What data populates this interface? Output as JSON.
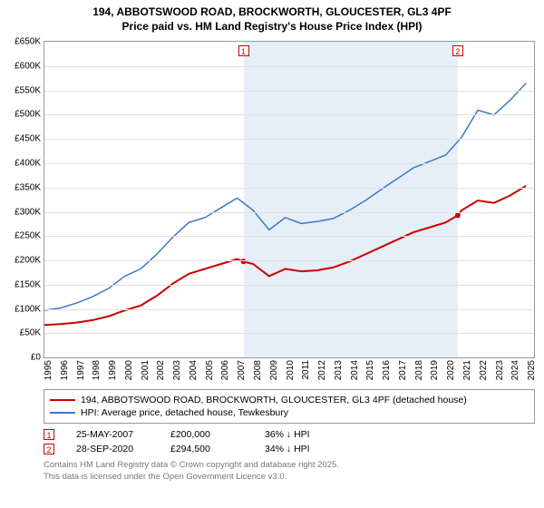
{
  "title_line1": "194, ABBOTSWOOD ROAD, BROCKWORTH, GLOUCESTER, GL3 4PF",
  "title_line2": "Price paid vs. HM Land Registry's House Price Index (HPI)",
  "chart": {
    "type": "line",
    "background_color": "#ffffff",
    "grid_color": "#e0e0e0",
    "xlim": [
      1995,
      2025.5
    ],
    "ylim": [
      0,
      650000
    ],
    "ytick_step": 50000,
    "yticks_labels": [
      "£0",
      "£50K",
      "£100K",
      "£150K",
      "£200K",
      "£250K",
      "£300K",
      "£350K",
      "£400K",
      "£450K",
      "£500K",
      "£550K",
      "£600K",
      "£650K"
    ],
    "xticks": [
      1995,
      1996,
      1997,
      1998,
      1999,
      2000,
      2001,
      2002,
      2003,
      2004,
      2005,
      2006,
      2007,
      2008,
      2009,
      2010,
      2011,
      2012,
      2013,
      2014,
      2015,
      2016,
      2017,
      2018,
      2019,
      2020,
      2021,
      2022,
      2023,
      2024,
      2025
    ],
    "shaded_band": {
      "start": 2007.4,
      "end": 2020.75,
      "color": "#e6eef7"
    },
    "series": [
      {
        "name": "property",
        "color": "#cc0000",
        "line_width": 2,
        "points": [
          [
            1995,
            70000
          ],
          [
            1996,
            72000
          ],
          [
            1997,
            75000
          ],
          [
            1998,
            80000
          ],
          [
            1999,
            88000
          ],
          [
            2000,
            100000
          ],
          [
            2001,
            110000
          ],
          [
            2002,
            130000
          ],
          [
            2003,
            155000
          ],
          [
            2004,
            175000
          ],
          [
            2005,
            185000
          ],
          [
            2006,
            195000
          ],
          [
            2007,
            205000
          ],
          [
            2007.4,
            200000
          ],
          [
            2008,
            195000
          ],
          [
            2009,
            170000
          ],
          [
            2010,
            185000
          ],
          [
            2011,
            180000
          ],
          [
            2012,
            182000
          ],
          [
            2013,
            188000
          ],
          [
            2014,
            200000
          ],
          [
            2015,
            215000
          ],
          [
            2016,
            230000
          ],
          [
            2017,
            245000
          ],
          [
            2018,
            260000
          ],
          [
            2019,
            270000
          ],
          [
            2020,
            280000
          ],
          [
            2020.75,
            294500
          ],
          [
            2021,
            305000
          ],
          [
            2022,
            325000
          ],
          [
            2023,
            320000
          ],
          [
            2024,
            335000
          ],
          [
            2025,
            355000
          ]
        ]
      },
      {
        "name": "hpi",
        "color": "#3b78c4",
        "line_width": 1.5,
        "points": [
          [
            1995,
            100000
          ],
          [
            1996,
            105000
          ],
          [
            1997,
            115000
          ],
          [
            1998,
            128000
          ],
          [
            1999,
            145000
          ],
          [
            2000,
            170000
          ],
          [
            2001,
            185000
          ],
          [
            2002,
            215000
          ],
          [
            2003,
            250000
          ],
          [
            2004,
            280000
          ],
          [
            2005,
            290000
          ],
          [
            2006,
            310000
          ],
          [
            2007,
            330000
          ],
          [
            2008,
            305000
          ],
          [
            2009,
            265000
          ],
          [
            2010,
            290000
          ],
          [
            2011,
            278000
          ],
          [
            2012,
            282000
          ],
          [
            2013,
            288000
          ],
          [
            2014,
            305000
          ],
          [
            2015,
            325000
          ],
          [
            2016,
            348000
          ],
          [
            2017,
            370000
          ],
          [
            2018,
            392000
          ],
          [
            2019,
            405000
          ],
          [
            2020,
            418000
          ],
          [
            2021,
            455000
          ],
          [
            2022,
            510000
          ],
          [
            2023,
            500000
          ],
          [
            2024,
            530000
          ],
          [
            2025,
            565000
          ]
        ]
      }
    ],
    "markers": [
      {
        "label": "1",
        "x": 2007.4,
        "y": 200000,
        "color": "#cc0000"
      },
      {
        "label": "2",
        "x": 2020.75,
        "y": 294500,
        "color": "#cc0000"
      }
    ]
  },
  "legend": {
    "series1_label": "194, ABBOTSWOOD ROAD, BROCKWORTH, GLOUCESTER, GL3 4PF (detached house)",
    "series1_color": "#cc0000",
    "series2_label": "HPI: Average price, detached house, Tewkesbury",
    "series2_color": "#3b78c4"
  },
  "transactions": [
    {
      "marker": "1",
      "color": "#cc0000",
      "date": "25-MAY-2007",
      "price": "£200,000",
      "delta": "36% ↓ HPI"
    },
    {
      "marker": "2",
      "color": "#cc0000",
      "date": "28-SEP-2020",
      "price": "£294,500",
      "delta": "34% ↓ HPI"
    }
  ],
  "footer_line1": "Contains HM Land Registry data © Crown copyright and database right 2025.",
  "footer_line2": "This data is licensed under the Open Government Licence v3.0."
}
